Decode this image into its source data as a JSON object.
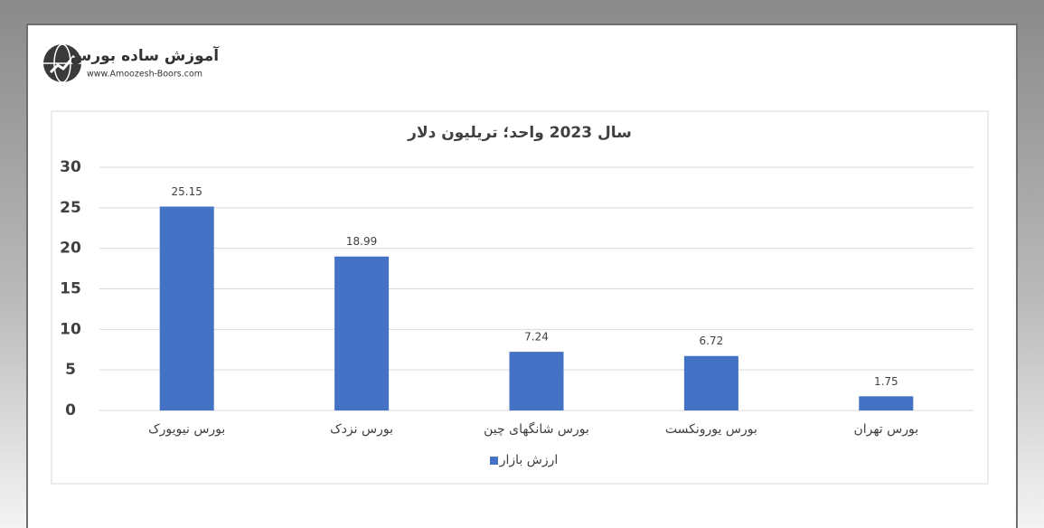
{
  "logo": {
    "name": "آموزش ساده بورس",
    "url": "www.Amoozesh-Boors.com"
  },
  "chart_data": {
    "type": "bar",
    "title": "سال 2023 واحد؛ تریلیون دلار",
    "categories": [
      "بورس نیویورک",
      "بورس نزدک",
      "بورس شانگهای چین",
      "بورس یورونکست",
      "بورس تهران"
    ],
    "series": [
      {
        "name": "ارزش بازار",
        "color": "#4472c4",
        "values": [
          25.15,
          18.99,
          7.24,
          6.72,
          1.75
        ]
      }
    ],
    "ylim": [
      0,
      30
    ],
    "yticks": [
      0,
      5,
      10,
      15,
      20,
      25,
      30
    ],
    "grid": true,
    "legend": "bottom"
  }
}
